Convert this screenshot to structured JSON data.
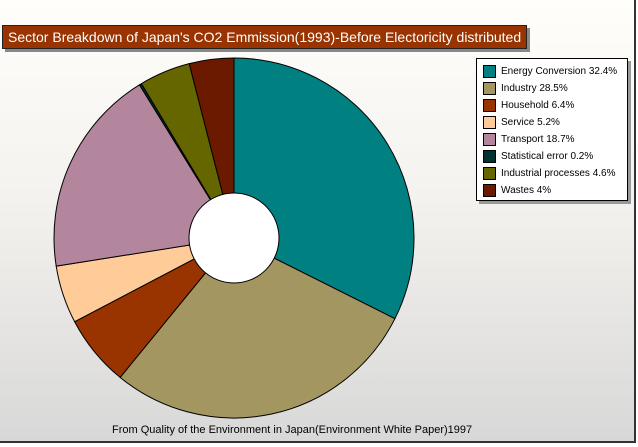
{
  "chart_data": {
    "type": "pie",
    "title": "Sector Breakdown of Japan's CO2 Emmission(1993)-Before Electoricity distributed",
    "source": "From Quality of the Environment in Japan(Environment White Paper)1997",
    "legend_position": "top-right",
    "series": [
      {
        "name": "Energy Conversion",
        "value": 32.4,
        "label": "Energy Conversion  32.4%",
        "color": "#008080"
      },
      {
        "name": "Industry",
        "value": 28.5,
        "label": "Industry  28.5%",
        "color": "#a39660"
      },
      {
        "name": "Household",
        "value": 6.4,
        "label": "Household  6.4%",
        "color": "#993300"
      },
      {
        "name": "Service",
        "value": 5.2,
        "label": "Service  5.2%",
        "color": "#ffcc99"
      },
      {
        "name": "Transport",
        "value": 18.7,
        "label": "Transport  18.7%",
        "color": "#b3869e"
      },
      {
        "name": "Statistical error",
        "value": 0.2,
        "label": "Statistical error  0.2%",
        "color": "#003333"
      },
      {
        "name": "Industrial processes",
        "value": 4.6,
        "label": "Industrial processes  4.6%",
        "color": "#666600"
      },
      {
        "name": "Wastes",
        "value": 4,
        "label": "Wastes  4%",
        "color": "#6b1a00"
      }
    ]
  }
}
